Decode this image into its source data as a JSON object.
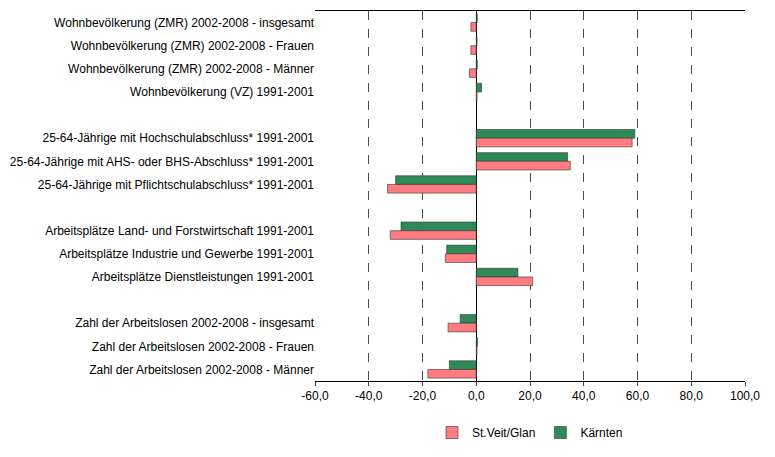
{
  "chart_data": {
    "type": "bar",
    "orientation": "horizontal",
    "categories": [
      "Wohnbevölkerung (ZMR) 2002-2008 - insgesamt",
      "Wohnbevölkerung (ZMR) 2002-2008 - Frauen",
      "Wohnbevölkerung (ZMR) 2002-2008 - Männer",
      "Wohnbevölkerung (VZ) 1991-2001",
      null,
      "25-64-Jährige mit Hochschulabschluss* 1991-2001",
      "25-64-Jährige mit AHS- oder BHS-Abschluss* 1991-2001",
      "25-64-Jährige mit Pflichtschulabschluss* 1991-2001",
      null,
      "Arbeitsplätze Land- und Forstwirtschaft 1991-2001",
      "Arbeitsplätze Industrie und Gewerbe 1991-2001",
      "Arbeitsplätze Dienstleistungen 1991-2001",
      null,
      "Zahl der Arbeitslosen 2002-2008 - insgesamt",
      "Zahl der Arbeitslosen 2002-2008 - Frauen",
      "Zahl der Arbeitslosen 2002-2008 - Männer"
    ],
    "series": [
      {
        "name": "St.Veit/Glan",
        "color": "#ff7c80",
        "values": [
          -2,
          -2,
          -2.5,
          0.3,
          null,
          58,
          35,
          -33,
          null,
          -32,
          -11.5,
          21,
          null,
          -10.5,
          0.3,
          -18
        ]
      },
      {
        "name": "Kärnten",
        "color": "#2e8b57",
        "values": [
          0.4,
          0.3,
          0.4,
          2,
          null,
          59,
          34,
          -30,
          null,
          -28,
          -11,
          15.5,
          null,
          -6,
          0.5,
          -10
        ]
      }
    ],
    "xlim": [
      -60,
      100
    ],
    "xticks": [
      {
        "value": -60,
        "label": "-60,0"
      },
      {
        "value": -40,
        "label": "-40,0"
      },
      {
        "value": -20,
        "label": "-20,0"
      },
      {
        "value": 0,
        "label": "0,0"
      },
      {
        "value": 20,
        "label": "20,0"
      },
      {
        "value": 40,
        "label": "40,0"
      },
      {
        "value": 60,
        "label": "60,0"
      },
      {
        "value": 80,
        "label": "80,0"
      },
      {
        "value": 100,
        "label": "100,0"
      }
    ],
    "grid": true,
    "legend": "bottom"
  }
}
